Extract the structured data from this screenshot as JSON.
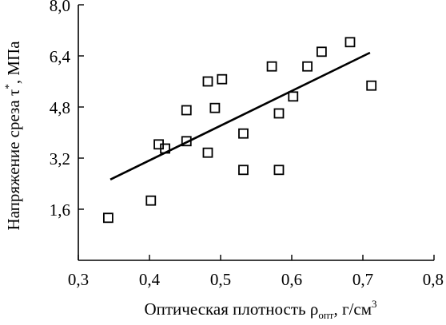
{
  "chart_data": {
    "type": "scatter",
    "xlabel": {
      "main": "Оптическая плотность ",
      "symbol": "ρ",
      "symbol_sub": "опт",
      "unit": ", г/см",
      "unit_sup": "3"
    },
    "ylabel": {
      "main": "Напряжение среза τ",
      "sup": "*",
      "unit": ", МПа"
    },
    "xlim": [
      0.3,
      0.8
    ],
    "ylim": [
      0,
      8.0
    ],
    "x_ticks": [
      0.3,
      0.4,
      0.5,
      0.6,
      0.7,
      0.8
    ],
    "x_tick_labels": [
      "0,3",
      "0,4",
      "0,5",
      "0,6",
      "0,7",
      "0,8"
    ],
    "y_ticks": [
      1.6,
      3.2,
      4.8,
      6.4,
      8.0
    ],
    "y_tick_labels": [
      "1,6",
      "3,2",
      "4,8",
      "6,4",
      "8,0"
    ],
    "grid": false,
    "marker": "open-square",
    "points": [
      {
        "x": 0.342,
        "y": 1.33
      },
      {
        "x": 0.402,
        "y": 1.87
      },
      {
        "x": 0.413,
        "y": 3.63
      },
      {
        "x": 0.422,
        "y": 3.5
      },
      {
        "x": 0.452,
        "y": 4.7
      },
      {
        "x": 0.452,
        "y": 3.73
      },
      {
        "x": 0.482,
        "y": 5.6
      },
      {
        "x": 0.482,
        "y": 3.37
      },
      {
        "x": 0.492,
        "y": 4.77
      },
      {
        "x": 0.502,
        "y": 5.67
      },
      {
        "x": 0.532,
        "y": 3.97
      },
      {
        "x": 0.532,
        "y": 2.83
      },
      {
        "x": 0.572,
        "y": 6.07
      },
      {
        "x": 0.582,
        "y": 4.6
      },
      {
        "x": 0.582,
        "y": 2.83
      },
      {
        "x": 0.602,
        "y": 5.13
      },
      {
        "x": 0.622,
        "y": 6.07
      },
      {
        "x": 0.642,
        "y": 6.53
      },
      {
        "x": 0.682,
        "y": 6.83
      },
      {
        "x": 0.712,
        "y": 5.47
      }
    ],
    "trend_line": {
      "x": [
        0.345,
        0.71
      ],
      "y": [
        2.53,
        6.5
      ]
    }
  }
}
